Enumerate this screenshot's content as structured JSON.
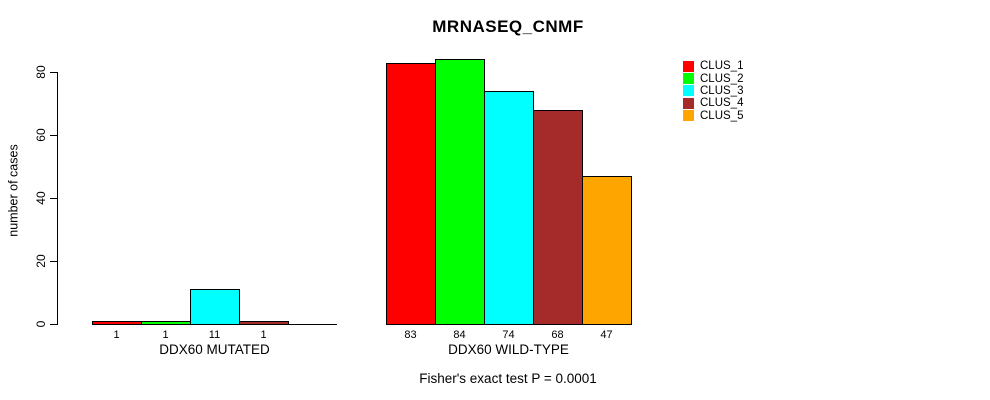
{
  "chart_data": {
    "type": "bar",
    "title": "MRNASEQ_CNMF",
    "ylabel": "number of cases",
    "ylim": [
      0,
      80
    ],
    "yticks": [
      0,
      20,
      40,
      60,
      80
    ],
    "grid": false,
    "legend_position": "right",
    "background_color": "#FFFFFF",
    "bar_border_color": "#000000",
    "series": [
      {
        "name": "CLUS_1",
        "color": "#FF0000"
      },
      {
        "name": "CLUS_2",
        "color": "#00FF00"
      },
      {
        "name": "CLUS_3",
        "color": "#00FFFF"
      },
      {
        "name": "CLUS_4",
        "color": "#A52A2A"
      },
      {
        "name": "CLUS_5",
        "color": "#FFA500"
      }
    ],
    "groups": [
      {
        "label": "DDX60 MUTATED",
        "values": [
          1,
          1,
          11,
          1,
          0
        ],
        "bar_labels": [
          "1",
          "1",
          "11",
          "1",
          ""
        ]
      },
      {
        "label": "DDX60 WILD-TYPE",
        "values": [
          83,
          84,
          74,
          68,
          47
        ],
        "bar_labels": [
          "83",
          "84",
          "74",
          "68",
          "47"
        ]
      }
    ],
    "footnote": "Fisher's exact test P = 0.0001"
  }
}
